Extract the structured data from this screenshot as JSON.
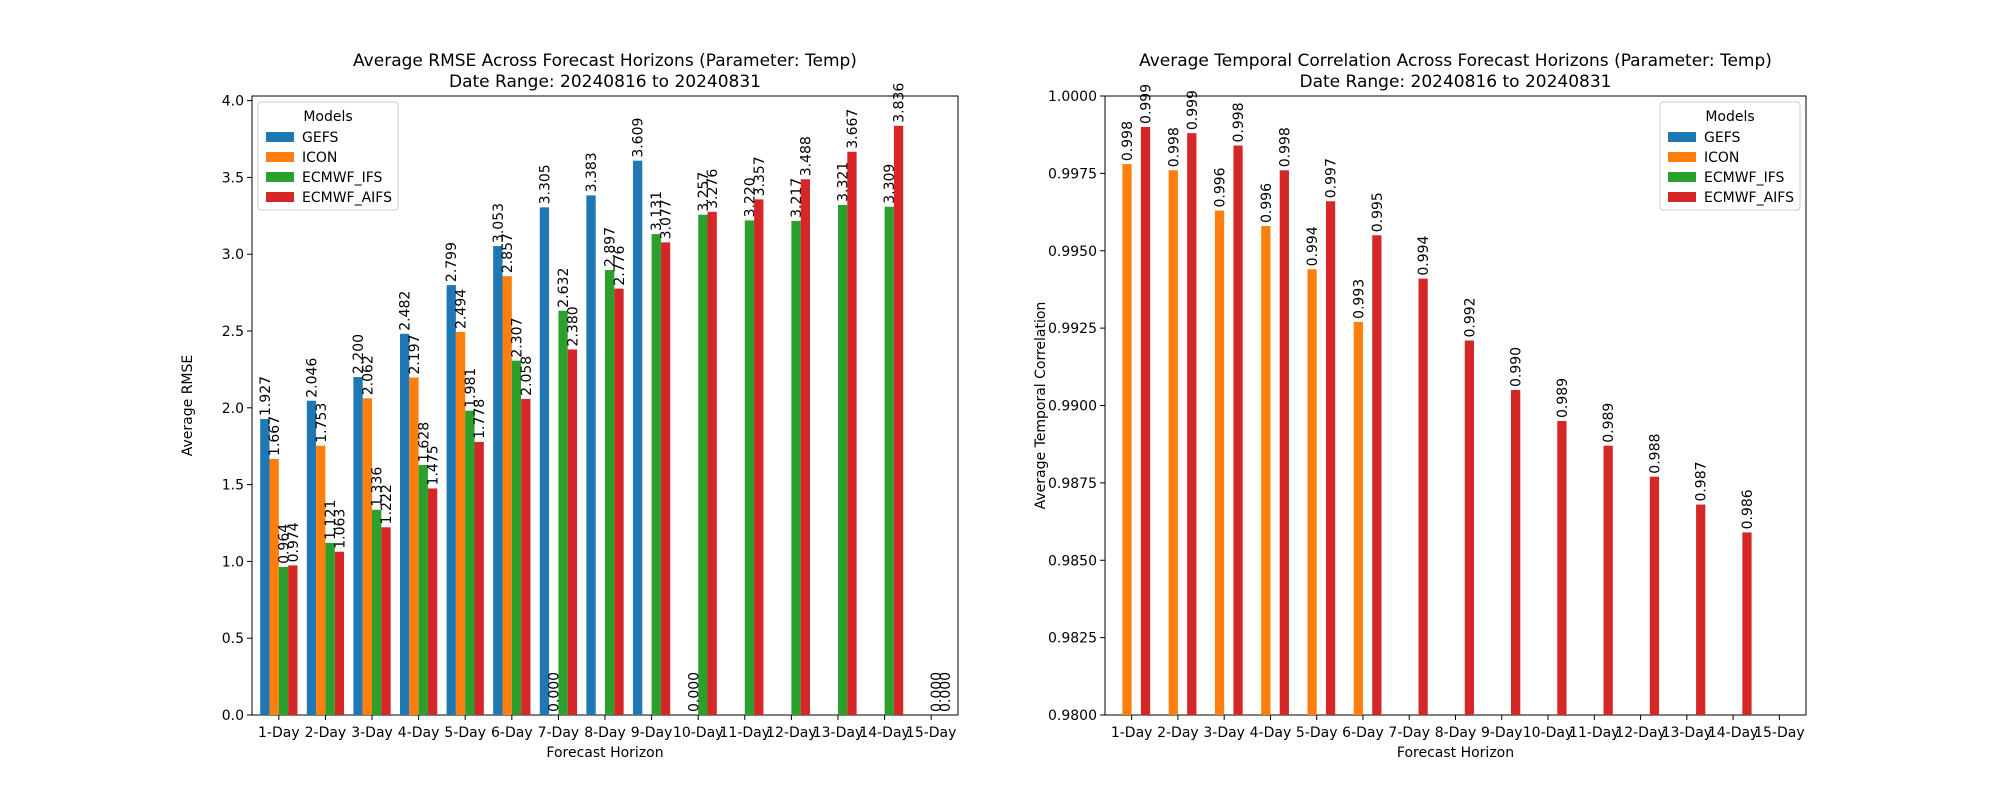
{
  "chart_data": [
    {
      "type": "bar",
      "title": "Average RMSE Across Forecast Horizons (Parameter: Temp)",
      "subtitle": "Date Range: 20240816 to 20240831",
      "xlabel": "Forecast Horizon",
      "ylabel": "Average RMSE",
      "ylim": [
        0,
        4.03
      ],
      "yticks": [
        "0.0",
        "0.5",
        "1.0",
        "1.5",
        "2.0",
        "2.5",
        "3.0",
        "3.5",
        "4.0"
      ],
      "categories": [
        "1-Day",
        "2-Day",
        "3-Day",
        "4-Day",
        "5-Day",
        "6-Day",
        "7-Day",
        "8-Day",
        "9-Day",
        "10-Day",
        "11-Day",
        "12-Day",
        "13-Day",
        "14-Day",
        "15-Day"
      ],
      "legend_title": "Models",
      "legend_position": "top-left",
      "series": [
        {
          "name": "GEFS",
          "color": "#1f77b4",
          "values": [
            1.927,
            2.046,
            2.2,
            2.482,
            2.799,
            3.053,
            3.305,
            3.383,
            3.609,
            null,
            null,
            null,
            null,
            null,
            null
          ],
          "labels": [
            "1.927",
            "2.046",
            "2.200",
            "2.482",
            "2.799",
            "3.053",
            "3.305",
            "3.383",
            "3.609",
            "",
            "",
            "",
            "",
            "",
            ""
          ]
        },
        {
          "name": "ICON",
          "color": "#ff7f0e",
          "values": [
            1.667,
            1.753,
            2.062,
            2.197,
            2.494,
            2.857,
            null,
            null,
            null,
            null,
            null,
            null,
            null,
            null,
            null
          ],
          "labels": [
            "1.667",
            "1.753",
            "2.062",
            "2.197",
            "2.494",
            "2.857",
            "",
            "",
            "",
            "",
            "",
            "",
            "",
            "",
            ""
          ]
        },
        {
          "name": "ECMWF_IFS",
          "color": "#2ca02c",
          "values": [
            0.964,
            1.121,
            1.336,
            1.628,
            1.981,
            2.307,
            2.632,
            2.897,
            3.131,
            3.257,
            3.22,
            3.217,
            3.321,
            3.309,
            0.0
          ],
          "labels": [
            "0.964",
            "1.121",
            "1.336",
            "1.628",
            "1.981",
            "2.307",
            "2.632",
            "2.897",
            "3.131",
            "3.257",
            "3.220",
            "3.217",
            "3.321",
            "3.309",
            "0.000"
          ]
        },
        {
          "name": "ECMWF_AIFS",
          "color": "#d62728",
          "values": [
            0.974,
            1.063,
            1.222,
            1.475,
            1.778,
            2.058,
            2.38,
            2.776,
            3.077,
            3.276,
            3.357,
            3.488,
            3.667,
            3.836,
            0.0
          ],
          "labels": [
            "0.974",
            "1.063",
            "1.222",
            "1.475",
            "1.778",
            "2.058",
            "2.380",
            "2.776",
            "3.077",
            "3.276",
            "3.357",
            "3.488",
            "3.667",
            "3.836",
            "0.000"
          ]
        }
      ],
      "extra_labels": [
        {
          "category_index": 6,
          "series_index": 1,
          "label": "0.000"
        },
        {
          "category_index": 9,
          "series_index": 1,
          "label": "0.000"
        }
      ]
    },
    {
      "type": "bar",
      "title": "Average Temporal Correlation Across Forecast Horizons (Parameter: Temp)",
      "subtitle": "Date Range: 20240816 to 20240831",
      "xlabel": "Forecast Horizon",
      "ylabel": "Average Temporal Correlation",
      "ylim": [
        0.98,
        1.0
      ],
      "yticks": [
        "0.9800",
        "0.9825",
        "0.9850",
        "0.9875",
        "0.9900",
        "0.9925",
        "0.9950",
        "0.9975",
        "1.0000"
      ],
      "categories": [
        "1-Day",
        "2-Day",
        "3-Day",
        "4-Day",
        "5-Day",
        "6-Day",
        "7-Day",
        "8-Day",
        "9-Day",
        "10-Day",
        "11-Day",
        "12-Day",
        "13-Day",
        "14-Day",
        "15-Day"
      ],
      "legend_title": "Models",
      "legend_position": "top-right",
      "series": [
        {
          "name": "GEFS",
          "color": "#1f77b4",
          "values": [
            null,
            null,
            null,
            null,
            null,
            null,
            null,
            null,
            null,
            null,
            null,
            null,
            null,
            null,
            null
          ],
          "labels": [
            "",
            "",
            "",
            "",
            "",
            "",
            "",
            "",
            "",
            "",
            "",
            "",
            "",
            "",
            ""
          ]
        },
        {
          "name": "ICON",
          "color": "#ff7f0e",
          "values": [
            0.9978,
            0.9976,
            0.9963,
            0.9958,
            0.9944,
            0.9927,
            null,
            null,
            null,
            null,
            null,
            null,
            null,
            null,
            null
          ],
          "labels": [
            "0.998",
            "0.998",
            "0.996",
            "0.996",
            "0.994",
            "0.993",
            "",
            "",
            "",
            "",
            "",
            "",
            "",
            "",
            ""
          ]
        },
        {
          "name": "ECMWF_IFS",
          "color": "#2ca02c",
          "values": [
            null,
            null,
            null,
            null,
            null,
            null,
            null,
            null,
            null,
            null,
            null,
            null,
            null,
            null,
            null
          ],
          "labels": [
            "",
            "",
            "",
            "",
            "",
            "",
            "",
            "",
            "",
            "",
            "",
            "",
            "",
            "",
            ""
          ]
        },
        {
          "name": "ECMWF_AIFS",
          "color": "#d62728",
          "values": [
            0.999,
            0.9988,
            0.9984,
            0.9976,
            0.9966,
            0.9955,
            0.9941,
            0.9921,
            0.9905,
            0.9895,
            0.9887,
            0.9877,
            0.9868,
            0.9859,
            null
          ],
          "labels": [
            "0.999",
            "0.999",
            "0.998",
            "0.998",
            "0.997",
            "0.995",
            "0.994",
            "0.992",
            "0.990",
            "0.989",
            "0.989",
            "0.988",
            "0.987",
            "0.986",
            ""
          ]
        }
      ],
      "extra_labels": []
    }
  ]
}
